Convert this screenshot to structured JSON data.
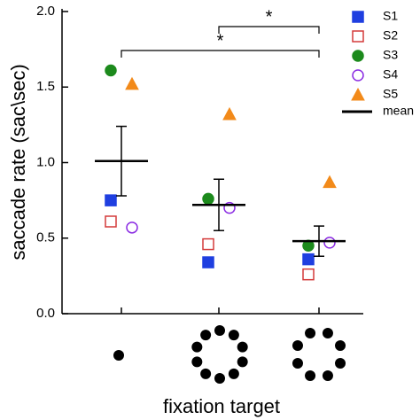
{
  "chart_data": {
    "type": "dotplot",
    "y_label": "saccade rate (sac\\sec)",
    "x_label": "fixation target",
    "categories": [
      null,
      null,
      null
    ],
    "ylim": [
      0,
      2
    ],
    "yticks": [
      {
        "value": 0,
        "label": "0.0"
      },
      {
        "value": 0.5,
        "label": "0.5"
      },
      {
        "value": 1,
        "label": "1.0"
      },
      {
        "value": 1.5,
        "label": "1.5"
      },
      {
        "value": 2,
        "label": "2.0"
      }
    ],
    "series": [
      {
        "name": "S1",
        "color": "#1f3fe0",
        "marker": "square",
        "filled": true,
        "values": [
          0.75,
          0.34,
          0.36
        ]
      },
      {
        "name": "S2",
        "color": "#d43a3a",
        "marker": "square",
        "filled": false,
        "values": [
          0.61,
          0.46,
          0.26
        ]
      },
      {
        "name": "S3",
        "color": "#1c8a1c",
        "marker": "circle",
        "filled": true,
        "values": [
          1.61,
          0.76,
          0.45
        ]
      },
      {
        "name": "S4",
        "color": "#8a2be2",
        "marker": "circle",
        "filled": false,
        "values": [
          0.57,
          0.7,
          0.47
        ]
      },
      {
        "name": "S5",
        "color": "#f28a1a",
        "marker": "triangle",
        "filled": true,
        "values": [
          1.52,
          1.32,
          0.87
        ]
      }
    ],
    "mean": {
      "name": "mean",
      "color": "#000000",
      "values": [
        1.01,
        0.72,
        0.48
      ],
      "errors": [
        0.23,
        0.17,
        0.1
      ]
    },
    "annotations": [
      "*",
      "*"
    ]
  }
}
